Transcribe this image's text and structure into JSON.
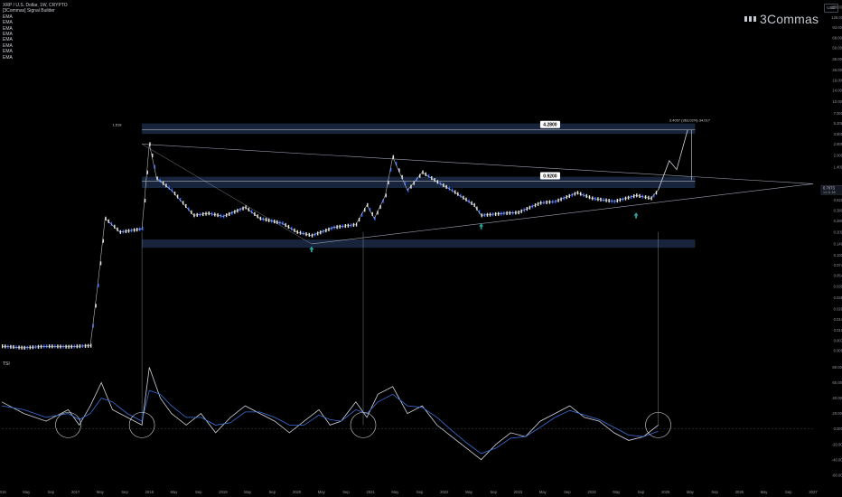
{
  "header": {
    "symbol_line": "XRP / U.S. Dollar, 1W, CRYPTO",
    "indicator_line": "[3Commas] Signal Builder",
    "ema_labels": [
      "EMA",
      "EMA",
      "EMA",
      "EMA",
      "EMA",
      "EMA",
      "EMA",
      "EMA"
    ],
    "oscillator_label": "TSI",
    "currency": "USD"
  },
  "brand": {
    "name": "3Commas",
    "icon": "3commas-logo-icon"
  },
  "colors": {
    "background": "#000000",
    "candle_up": "#e6e6e6",
    "candle_down": "#2962ff",
    "zone_fill": "#1b2a46",
    "line": "#9aa0ad",
    "tsi_line": "#d1d4dc",
    "signal_line": "#3a6fd8",
    "marker": "#26a69a",
    "label_bg": "#d1d4dc"
  },
  "chart_data": [
    {
      "type": "line",
      "role": "price",
      "log_scale": true,
      "y_ticks": [
        "170.0000",
        "125.0000",
        "93.0000",
        "68.0000",
        "50.0000",
        "36.0000",
        "26.0000",
        "19.0000",
        "14.0000",
        "10.0000",
        "7.0000",
        "5.2000",
        "3.8000",
        "2.8000",
        "2.0000",
        "1.4000",
        "0.7073",
        "0.5200",
        "0.3800",
        "0.2800",
        "0.2000",
        "0.1400",
        "0.1000",
        "0.0740",
        "0.0540",
        "0.0390",
        "0.0280",
        "0.0200",
        "0.0145",
        "0.0105",
        "0.0077",
        "0.0057"
      ],
      "x_ticks": [
        "2016",
        "May",
        "Sep",
        "2017",
        "May",
        "Sep",
        "2018",
        "May",
        "Sep",
        "2019",
        "May",
        "Sep",
        "2020",
        "May",
        "Sep",
        "2021",
        "May",
        "Sep",
        "2022",
        "May",
        "Sep",
        "2023",
        "May",
        "Sep",
        "2024",
        "May",
        "Sep",
        "2025",
        "May",
        "Sep",
        "2026",
        "May",
        "Sep",
        "2027"
      ],
      "x": [
        2016.0,
        2016.3,
        2016.6,
        2016.9,
        2017.2,
        2017.3,
        2017.4,
        2017.6,
        2017.9,
        2018.0,
        2018.1,
        2018.3,
        2018.6,
        2018.8,
        2019.0,
        2019.3,
        2019.5,
        2019.8,
        2020.0,
        2020.2,
        2020.5,
        2020.8,
        2020.95,
        2021.05,
        2021.2,
        2021.3,
        2021.5,
        2021.7,
        2021.9,
        2022.1,
        2022.4,
        2022.5,
        2022.8,
        2023.0,
        2023.3,
        2023.5,
        2023.8,
        2024.0,
        2024.3,
        2024.6,
        2024.8,
        2024.9
      ],
      "close": [
        0.0065,
        0.0062,
        0.0065,
        0.0064,
        0.0066,
        0.04,
        0.3,
        0.2,
        0.22,
        2.8,
        1.0,
        0.7,
        0.33,
        0.35,
        0.32,
        0.42,
        0.3,
        0.26,
        0.2,
        0.18,
        0.23,
        0.25,
        0.45,
        0.3,
        0.6,
        1.9,
        0.7,
        1.2,
        0.9,
        0.7,
        0.45,
        0.33,
        0.35,
        0.36,
        0.48,
        0.5,
        0.65,
        0.55,
        0.5,
        0.6,
        0.55,
        0.7073
      ],
      "projection": {
        "x": [
          2024.9,
          2025.05,
          2025.15,
          2025.3
        ],
        "y": [
          0.7073,
          1.7,
          1.3,
          4.3
        ]
      },
      "current_price": "0.7073",
      "current_price_sub": "14:11:55",
      "levels": [
        {
          "label": "4.2800",
          "value": 4.28
        },
        {
          "label": "0.9200",
          "value": 0.92
        }
      ],
      "fib_label": "1.618",
      "measure_label": "3.4057 (363.02%) 34,017",
      "zones": [
        {
          "from": 3.8,
          "to": 5.2
        },
        {
          "from": 0.75,
          "to": 1.05
        },
        {
          "from": 0.125,
          "to": 0.16
        }
      ]
    },
    {
      "type": "line",
      "role": "oscillator",
      "y_ticks": [
        "80.0000",
        "60.0000",
        "40.0000",
        "20.0000",
        "0.0000",
        "-20.0000",
        "-40.0000",
        "-60.0000"
      ],
      "x": [
        2016.0,
        2016.3,
        2016.6,
        2016.9,
        2017.05,
        2017.2,
        2017.35,
        2017.5,
        2017.7,
        2017.9,
        2018.0,
        2018.15,
        2018.3,
        2018.5,
        2018.7,
        2018.9,
        2019.1,
        2019.3,
        2019.5,
        2019.7,
        2019.9,
        2020.1,
        2020.3,
        2020.45,
        2020.6,
        2020.8,
        2020.95,
        2021.1,
        2021.3,
        2021.5,
        2021.7,
        2021.9,
        2022.1,
        2022.3,
        2022.5,
        2022.7,
        2022.9,
        2023.1,
        2023.3,
        2023.5,
        2023.7,
        2023.9,
        2024.1,
        2024.3,
        2024.5,
        2024.7,
        2024.9
      ],
      "tsi": [
        35,
        20,
        10,
        25,
        5,
        30,
        60,
        25,
        15,
        5,
        80,
        40,
        20,
        5,
        20,
        -5,
        15,
        30,
        20,
        10,
        -5,
        10,
        25,
        5,
        10,
        35,
        15,
        45,
        55,
        20,
        30,
        5,
        -10,
        -25,
        -40,
        -20,
        -5,
        -10,
        10,
        20,
        30,
        15,
        10,
        -5,
        -15,
        -10,
        5
      ],
      "signal": [
        30,
        25,
        15,
        20,
        12,
        20,
        40,
        35,
        20,
        10,
        50,
        45,
        30,
        15,
        15,
        5,
        8,
        22,
        22,
        15,
        5,
        5,
        18,
        12,
        10,
        25,
        20,
        35,
        45,
        30,
        28,
        15,
        -2,
        -18,
        -32,
        -25,
        -12,
        -10,
        2,
        15,
        24,
        18,
        12,
        2,
        -8,
        -10,
        -3
      ],
      "signal_circles": [
        2016.9,
        2017.9,
        2020.9,
        2024.9
      ]
    }
  ]
}
